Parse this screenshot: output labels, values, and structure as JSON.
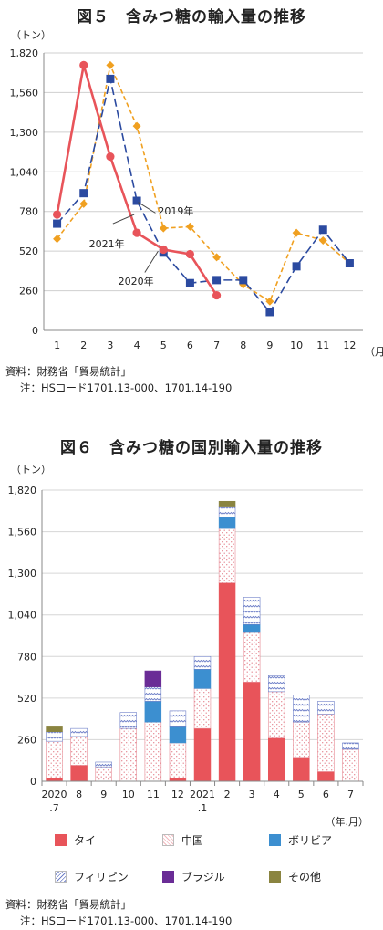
{
  "fig5": {
    "title": "図５　含みつ糖の輸入量の推移",
    "y_unit": "（トン）",
    "x_unit": "（月）",
    "source": "資料：財務省「貿易統計」",
    "note": "注：HSコード1701.13-000、1701.14-190",
    "labels": {
      "y2019": "2019年",
      "y2021": "2021年",
      "y2020": "2020年"
    }
  },
  "fig6": {
    "title": "図６　含みつ糖の国別輸入量の推移",
    "y_unit": "（トン）",
    "x_unit": "（年.月）",
    "source": "資料：財務省「貿易統計」",
    "note": "注：HSコード1701.13-000、1701.14-190"
  },
  "legend": {
    "thai": "タイ",
    "china": "中国",
    "bolivia": "ボリビア",
    "philippines": "フィリピン",
    "brazil": "ブラジル",
    "other": "その他"
  },
  "colors": {
    "y2021": "#e8545a",
    "y2020": "#2b4aa0",
    "y2019": "#f0a020",
    "thai": "#e8545a",
    "china": "#f6c8cc",
    "bolivia": "#3c8fd0",
    "philippines": "#7f8fd0",
    "brazil": "#6a2c96",
    "other": "#8a8440"
  },
  "chart_data": [
    {
      "type": "line",
      "title": "図５　含みつ糖の輸入量の推移",
      "ylabel": "（トン）",
      "xlabel": "（月）",
      "ylim": [
        0,
        1820
      ],
      "yticks": [
        "0",
        "260",
        "520",
        "780",
        "1,040",
        "1,300",
        "1,560",
        "1,820"
      ],
      "categories": [
        "1",
        "2",
        "3",
        "4",
        "5",
        "6",
        "7",
        "8",
        "9",
        "10",
        "11",
        "12"
      ],
      "series": [
        {
          "name": "2019年",
          "values": [
            600,
            830,
            1740,
            1340,
            670,
            680,
            480,
            300,
            190,
            640,
            590,
            440
          ]
        },
        {
          "name": "2020年",
          "values": [
            700,
            900,
            1650,
            850,
            510,
            310,
            330,
            330,
            120,
            420,
            660,
            440
          ]
        },
        {
          "name": "2021年",
          "values": [
            760,
            1740,
            1140,
            640,
            530,
            500,
            230,
            null,
            null,
            null,
            null,
            null
          ]
        }
      ]
    },
    {
      "type": "bar",
      "stacked": true,
      "title": "図６　含みつ糖の国別輸入量の推移",
      "ylabel": "（トン）",
      "xlabel": "（年.月）",
      "ylim": [
        0,
        1820
      ],
      "yticks": [
        "0",
        "260",
        "520",
        "780",
        "1,040",
        "1,300",
        "1,560",
        "1,820"
      ],
      "categories": [
        "2020\n.7",
        "8",
        "9",
        "10",
        "11",
        "12",
        "2021\n.1",
        "2",
        "3",
        "4",
        "5",
        "6",
        "7"
      ],
      "series": [
        {
          "name": "タイ",
          "values": [
            20,
            100,
            0,
            0,
            0,
            20,
            330,
            1240,
            620,
            270,
            150,
            60,
            0
          ]
        },
        {
          "name": "中国",
          "values": [
            230,
            180,
            90,
            330,
            370,
            220,
            250,
            340,
            310,
            290,
            220,
            360,
            200
          ]
        },
        {
          "name": "ボリビア",
          "values": [
            0,
            0,
            0,
            0,
            130,
            100,
            120,
            70,
            50,
            0,
            0,
            0,
            0
          ]
        },
        {
          "name": "フィリピン",
          "values": [
            60,
            50,
            30,
            100,
            90,
            100,
            80,
            70,
            170,
            100,
            170,
            80,
            40
          ]
        },
        {
          "name": "ブラジル",
          "values": [
            0,
            0,
            0,
            0,
            100,
            0,
            0,
            0,
            0,
            0,
            0,
            0,
            0
          ]
        },
        {
          "name": "その他",
          "values": [
            30,
            0,
            0,
            0,
            0,
            0,
            0,
            30,
            0,
            0,
            0,
            0,
            0
          ]
        }
      ]
    }
  ]
}
